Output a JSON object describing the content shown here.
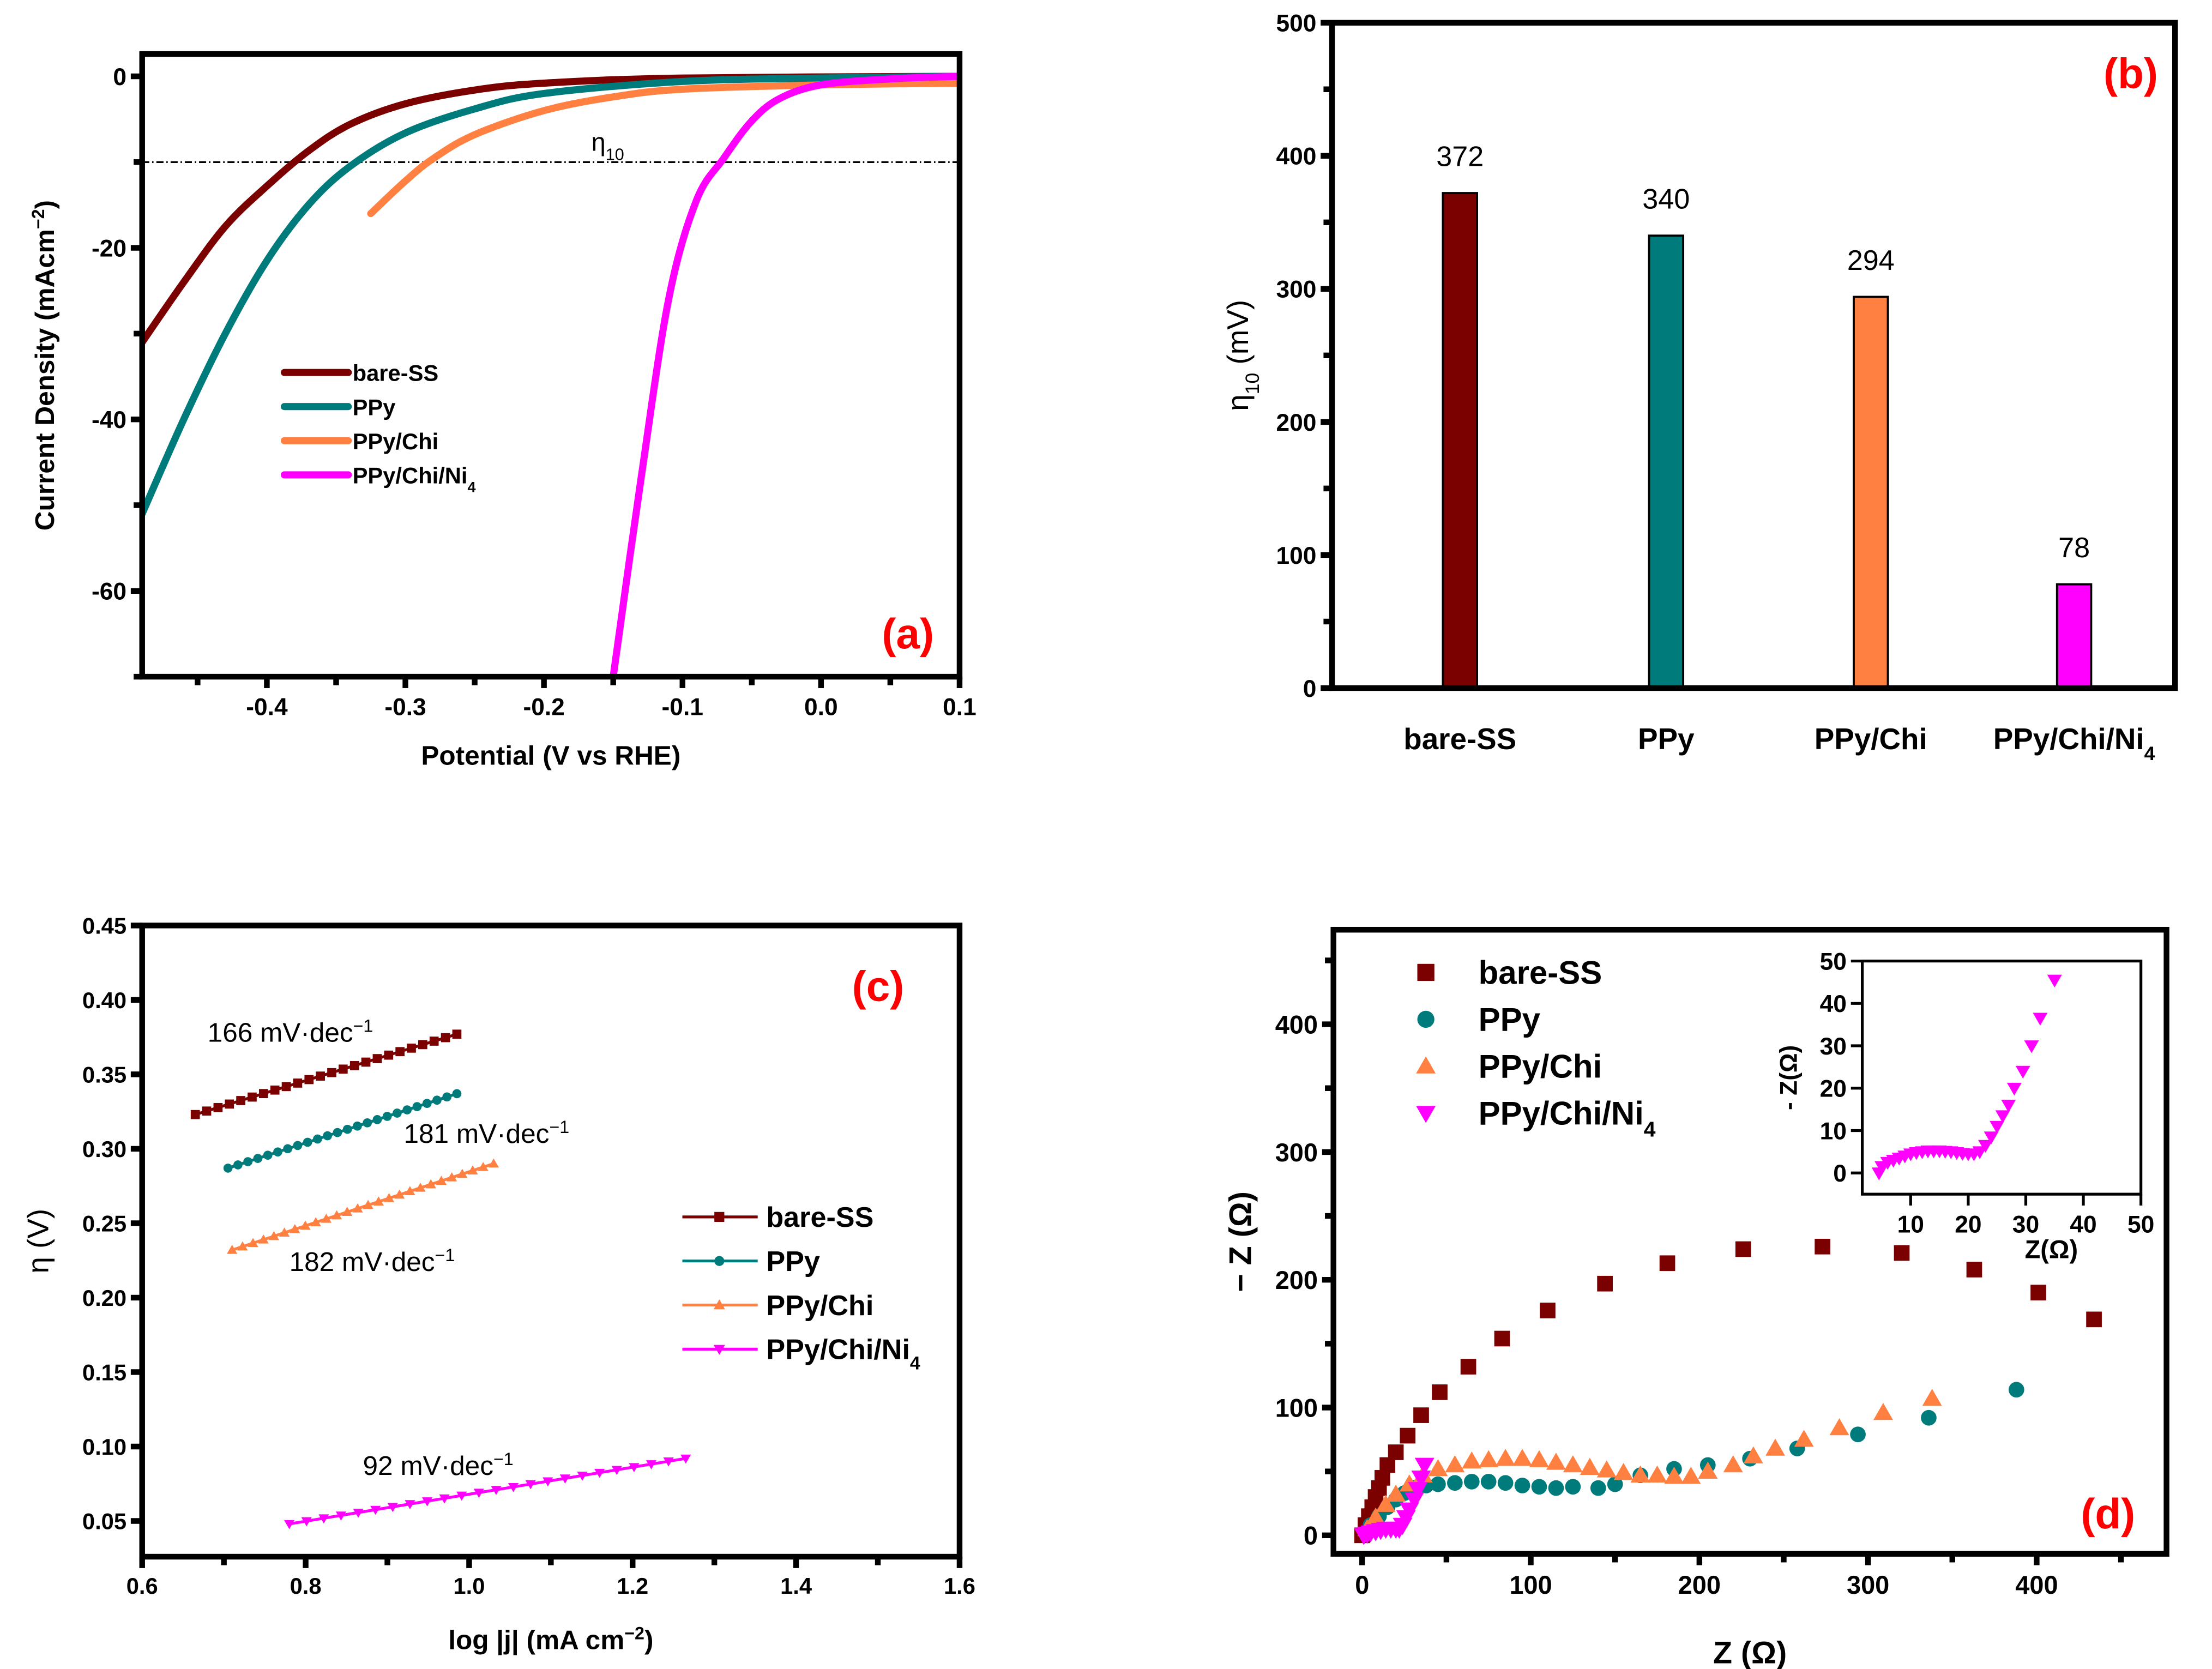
{
  "colors": {
    "bare_ss": "#7b0000",
    "ppy": "#007b7b",
    "ppy_chi": "#ff8040",
    "ppy_chi_ni4": "#ff00ff",
    "panel_label": "#ff0000"
  },
  "chart_data": [
    {
      "id": "a",
      "type": "line",
      "panel_label": "(a)",
      "xlabel": "Potential (V vs RHE)",
      "ylabel": "Current Density (mAcm",
      "ylabel_sup": "−2",
      "ylabel_end": ")",
      "xlim": [
        -0.49,
        0.1
      ],
      "ylim": [
        -70,
        2.6
      ],
      "xticks": [
        -0.4,
        -0.3,
        -0.2,
        -0.1,
        0.0,
        0.1
      ],
      "xtick_labels": [
        "-0.4",
        "-0.3",
        "-0.2",
        "-0.1",
        "0.0",
        "0.1"
      ],
      "yticks": [
        0,
        -20,
        -40,
        -60
      ],
      "ytick_labels": [
        "0",
        "-20",
        "-40",
        "-60"
      ],
      "reference_line": {
        "y": -10,
        "label": "η",
        "label_sub": "10"
      },
      "legend_position": "center-left",
      "series": [
        {
          "name": "bare-SS",
          "sub": "",
          "color_key": "bare_ss",
          "points": [
            [
              -0.49,
              -31
            ],
            [
              -0.46,
              -24
            ],
            [
              -0.43,
              -17.5
            ],
            [
              -0.4,
              -12.8
            ],
            [
              -0.37,
              -8.7
            ],
            [
              -0.34,
              -5.6
            ],
            [
              -0.3,
              -3.2
            ],
            [
              -0.25,
              -1.6
            ],
            [
              -0.2,
              -0.8
            ],
            [
              -0.1,
              -0.2
            ],
            [
              0.1,
              0
            ]
          ]
        },
        {
          "name": "PPy",
          "sub": "",
          "color_key": "ppy",
          "points": [
            [
              -0.49,
              -51
            ],
            [
              -0.46,
              -40
            ],
            [
              -0.43,
              -30
            ],
            [
              -0.4,
              -21.5
            ],
            [
              -0.37,
              -15
            ],
            [
              -0.34,
              -10.5
            ],
            [
              -0.3,
              -6.6
            ],
            [
              -0.25,
              -3.8
            ],
            [
              -0.2,
              -2
            ],
            [
              -0.1,
              -0.6
            ],
            [
              0,
              -0.2
            ],
            [
              0.1,
              0
            ]
          ]
        },
        {
          "name": "PPy/Chi",
          "sub": "",
          "color_key": "ppy_chi",
          "points": [
            [
              -0.325,
              -16
            ],
            [
              -0.3,
              -12.2
            ],
            [
              -0.28,
              -9.6
            ],
            [
              -0.25,
              -6.8
            ],
            [
              -0.2,
              -4
            ],
            [
              -0.15,
              -2.4
            ],
            [
              -0.1,
              -1.5
            ],
            [
              0,
              -1
            ],
            [
              0.1,
              -0.8
            ]
          ]
        },
        {
          "name": "PPy/Chi/Ni",
          "sub": "4",
          "color_key": "ppy_chi_ni4",
          "points": [
            [
              -0.15,
              -70
            ],
            [
              -0.13,
              -47
            ],
            [
              -0.11,
              -26
            ],
            [
              -0.09,
              -14.5
            ],
            [
              -0.07,
              -9.5
            ],
            [
              -0.05,
              -5.2
            ],
            [
              -0.03,
              -2.6
            ],
            [
              0,
              -1
            ],
            [
              0.05,
              -0.3
            ],
            [
              0.1,
              0
            ]
          ]
        }
      ]
    },
    {
      "id": "b",
      "type": "bar",
      "panel_label": "(b)",
      "ylabel": "η",
      "ylabel_sub": "10",
      "ylabel_end": " (mV)",
      "ylim": [
        0,
        500
      ],
      "yticks": [
        0,
        100,
        200,
        300,
        400,
        500
      ],
      "ytick_labels": [
        "0",
        "100",
        "200",
        "300",
        "400",
        "500"
      ],
      "categories": [
        {
          "name": "bare-SS",
          "sub": ""
        },
        {
          "name": "PPy",
          "sub": ""
        },
        {
          "name": "PPy/Chi",
          "sub": ""
        },
        {
          "name": "PPy/Chi/Ni",
          "sub": "4"
        }
      ],
      "values": [
        372,
        340,
        294,
        78
      ],
      "value_labels": [
        "372",
        "340",
        "294",
        "78"
      ],
      "color_keys": [
        "bare_ss",
        "ppy",
        "ppy_chi",
        "ppy_chi_ni4"
      ]
    },
    {
      "id": "c",
      "type": "line",
      "panel_label": "(c)",
      "xlabel": "log |j| (mA cm",
      "xlabel_sup": "−2",
      "xlabel_end": ")",
      "ylabel": "η (V)",
      "xlim": [
        0.6,
        1.6
      ],
      "ylim": [
        0.026,
        0.45
      ],
      "xticks": [
        0.6,
        0.8,
        1.0,
        1.2,
        1.4,
        1.6
      ],
      "xtick_labels": [
        "0.6",
        "0.8",
        "1.0",
        "1.2",
        "1.4",
        "1.6"
      ],
      "yticks": [
        0.05,
        0.1,
        0.15,
        0.2,
        0.25,
        0.3,
        0.35,
        0.4,
        0.45
      ],
      "ytick_labels": [
        "0.05",
        "0.10",
        "0.15",
        "0.20",
        "0.25",
        "0.30",
        "0.35",
        "0.40",
        "0.45"
      ],
      "legend_position": "right",
      "series": [
        {
          "name": "bare-SS",
          "sub": "",
          "color_key": "bare_ss",
          "marker": "square",
          "start": [
            0.665,
            0.323
          ],
          "end": [
            0.985,
            0.377
          ],
          "n": 24
        },
        {
          "name": "PPy",
          "sub": "",
          "color_key": "ppy",
          "marker": "circle",
          "start": [
            0.705,
            0.287
          ],
          "end": [
            0.985,
            0.337
          ],
          "n": 24
        },
        {
          "name": "PPy/Chi",
          "sub": "",
          "color_key": "ppy_chi",
          "marker": "triangle-up",
          "start": [
            0.71,
            0.232
          ],
          "end": [
            1.03,
            0.29
          ],
          "n": 26
        },
        {
          "name": "PPy/Chi/Ni",
          "sub": "4",
          "color_key": "ppy_chi_ni4",
          "marker": "triangle-down",
          "start": [
            0.78,
            0.048
          ],
          "end": [
            1.265,
            0.092
          ],
          "n": 24
        }
      ],
      "annotations": [
        {
          "text": "166 mV·dec",
          "sup": "−1",
          "at": [
            0.68,
            0.372
          ]
        },
        {
          "text": "181 mV·dec",
          "sup": "−1",
          "at": [
            0.92,
            0.304
          ]
        },
        {
          "text": "182 mV·dec",
          "sup": "−1",
          "at": [
            0.78,
            0.218
          ]
        },
        {
          "text": "92 mV·dec",
          "sup": "−1",
          "at": [
            0.87,
            0.081
          ]
        }
      ]
    },
    {
      "id": "d",
      "type": "scatter",
      "panel_label": "(d)",
      "xlabel": "Z (Ω)",
      "ylabel": "− Z (Ω)",
      "xlim": [
        -17,
        477
      ],
      "ylim": [
        -14.5,
        474
      ],
      "xticks": [
        0,
        100,
        200,
        300,
        400
      ],
      "xtick_labels": [
        "0",
        "100",
        "200",
        "300",
        "400"
      ],
      "yticks": [
        0,
        100,
        200,
        300,
        400
      ],
      "ytick_labels": [
        "0",
        "100",
        "200",
        "300",
        "400"
      ],
      "legend_position": "top-left",
      "series": [
        {
          "name": "bare-SS",
          "sub": "",
          "color_key": "bare_ss",
          "marker": "square",
          "points": [
            [
              0,
              0
            ],
            [
              2,
              8
            ],
            [
              4,
              15
            ],
            [
              6,
              22
            ],
            [
              8,
              30
            ],
            [
              10,
              37
            ],
            [
              12,
              45
            ],
            [
              15,
              55
            ],
            [
              20,
              65
            ],
            [
              27,
              78
            ],
            [
              35,
              94
            ],
            [
              46,
              112
            ],
            [
              63,
              132
            ],
            [
              83,
              154
            ],
            [
              110,
              176
            ],
            [
              144,
              197
            ],
            [
              181,
              213
            ],
            [
              226,
              224
            ],
            [
              273,
              226
            ],
            [
              320,
              221
            ],
            [
              363,
              208
            ],
            [
              401,
              190
            ],
            [
              434,
              169
            ]
          ]
        },
        {
          "name": "PPy",
          "sub": "",
          "color_key": "ppy",
          "marker": "circle",
          "points": [
            [
              5,
              8
            ],
            [
              10,
              15
            ],
            [
              15,
              22
            ],
            [
              20,
              28
            ],
            [
              25,
              33
            ],
            [
              30,
              37
            ],
            [
              38,
              39
            ],
            [
              45,
              40
            ],
            [
              55,
              41
            ],
            [
              65,
              42
            ],
            [
              75,
              42
            ],
            [
              85,
              41
            ],
            [
              95,
              39
            ],
            [
              105,
              38
            ],
            [
              115,
              37
            ],
            [
              125,
              38
            ],
            [
              140,
              37
            ],
            [
              150,
              40
            ],
            [
              165,
              47
            ],
            [
              185,
              52
            ],
            [
              205,
              55
            ],
            [
              230,
              60
            ],
            [
              258,
              68
            ],
            [
              294,
              79
            ],
            [
              336,
              92
            ],
            [
              388,
              114
            ]
          ]
        },
        {
          "name": "PPy/Chi",
          "sub": "",
          "color_key": "ppy_chi",
          "marker": "triangle-up",
          "points": [
            [
              3,
              5
            ],
            [
              8,
              14
            ],
            [
              14,
              24
            ],
            [
              20,
              32
            ],
            [
              28,
              40
            ],
            [
              36,
              47
            ],
            [
              45,
              52
            ],
            [
              55,
              55
            ],
            [
              65,
              58
            ],
            [
              75,
              59
            ],
            [
              85,
              60
            ],
            [
              95,
              60
            ],
            [
              105,
              59
            ],
            [
              115,
              57
            ],
            [
              125,
              55
            ],
            [
              135,
              53
            ],
            [
              145,
              51
            ],
            [
              155,
              49
            ],
            [
              165,
              47
            ],
            [
              175,
              47
            ],
            [
              185,
              46
            ],
            [
              195,
              46
            ],
            [
              205,
              50
            ],
            [
              220,
              55
            ],
            [
              232,
              62
            ],
            [
              245,
              68
            ],
            [
              262,
              75
            ],
            [
              283,
              84
            ],
            [
              309,
              96
            ],
            [
              338,
              107
            ]
          ]
        },
        {
          "name": "PPy/Chi/Ni",
          "sub": "4",
          "color_key": "ppy_chi_ni4",
          "marker": "triangle-down",
          "points": [
            [
              1,
              0
            ],
            [
              3,
              1
            ],
            [
              5,
              2
            ],
            [
              8,
              3
            ],
            [
              11,
              4
            ],
            [
              14,
              5
            ],
            [
              17,
              5
            ],
            [
              20,
              5
            ],
            [
              22,
              5
            ],
            [
              24,
              8
            ],
            [
              26,
              14
            ],
            [
              28,
              20
            ],
            [
              31,
              28
            ],
            [
              33,
              36
            ],
            [
              35,
              45
            ],
            [
              37,
              55
            ]
          ]
        }
      ],
      "inset": {
        "xlabel": "Z(Ω)",
        "ylabel": "- Z(Ω)",
        "xlim": [
          1.6,
          50
        ],
        "ylim": [
          -5,
          50
        ],
        "xticks": [
          10,
          20,
          30,
          40,
          50
        ],
        "xtick_labels": [
          "10",
          "20",
          "30",
          "40",
          "50"
        ],
        "yticks": [
          0,
          10,
          20,
          30,
          40,
          50
        ],
        "ytick_labels": [
          "0",
          "10",
          "20",
          "30",
          "40",
          "50"
        ],
        "points": [
          [
            4.5,
            0
          ],
          [
            5,
            1.5
          ],
          [
            6,
            2.5
          ],
          [
            7,
            3
          ],
          [
            8,
            3.5
          ],
          [
            9,
            4
          ],
          [
            10,
            4.5
          ],
          [
            11,
            4.8
          ],
          [
            12,
            5
          ],
          [
            13,
            5.2
          ],
          [
            14,
            5.2
          ],
          [
            15,
            5.2
          ],
          [
            16,
            5.1
          ],
          [
            17,
            5
          ],
          [
            18,
            4.8
          ],
          [
            19,
            4.6
          ],
          [
            20,
            4.5
          ],
          [
            21,
            4.5
          ],
          [
            22,
            5
          ],
          [
            23,
            6.5
          ],
          [
            24,
            8.5
          ],
          [
            25,
            11
          ],
          [
            26,
            13.5
          ],
          [
            27,
            16
          ],
          [
            28,
            20
          ],
          [
            29.5,
            24
          ],
          [
            31,
            30
          ],
          [
            32.5,
            36.5
          ],
          [
            35,
            45.5
          ]
        ]
      }
    }
  ]
}
